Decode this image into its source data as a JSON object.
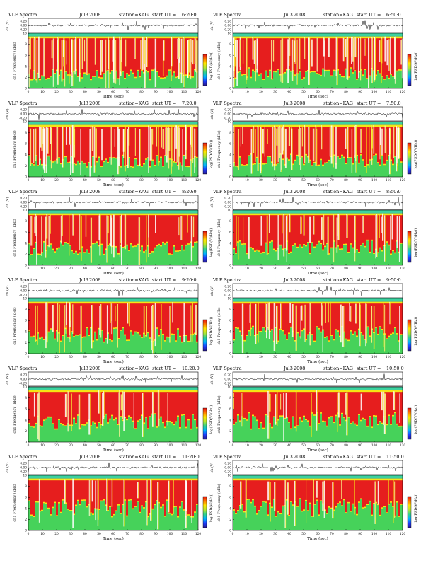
{
  "page": {
    "chart_title": "VLF Spectra",
    "date": "Jul3 2008",
    "station": "station=KAG",
    "start_prefix": "start  UT  ="
  },
  "chart_data": [
    {
      "type": "heatmap",
      "title": "VLF Spectra",
      "date": "Jul3 2008",
      "station": "station=KAG",
      "start_ut": "6:20:0",
      "xlabel": "Time (sec)",
      "ylabel": "ch1 Frequency (kHz)",
      "waveform_label": "ch (V)",
      "waveform_ticks": [
        "0.20",
        "0.00",
        "-0.20"
      ],
      "colorbar_label": "log(PSD(V²/Hz))",
      "xlim": [
        0,
        120
      ],
      "ylim": [
        0,
        10
      ],
      "x_ticks": [
        0,
        10,
        20,
        30,
        40,
        50,
        60,
        70,
        80,
        90,
        100,
        110,
        120
      ],
      "y_ticks": [
        0,
        2,
        4,
        6,
        8,
        10
      ]
    },
    {
      "type": "heatmap",
      "title": "VLF Spectra",
      "date": "Jul3 2008",
      "station": "station=KAG",
      "start_ut": "6:50:0",
      "xlabel": "Time (sec)",
      "ylabel": "ch1 Frequency (kHz)",
      "waveform_label": "ch (V)",
      "waveform_ticks": [
        "0.20",
        "0.00",
        "-0.20"
      ],
      "colorbar_label": "log(PSD(V²/Hz))",
      "xlim": [
        0,
        120
      ],
      "ylim": [
        0,
        10
      ],
      "x_ticks": [
        0,
        10,
        20,
        30,
        40,
        50,
        60,
        70,
        80,
        90,
        100,
        110,
        120
      ],
      "y_ticks": [
        0,
        2,
        4,
        6,
        8,
        10
      ]
    },
    {
      "type": "heatmap",
      "title": "VLF Spectra",
      "date": "Jul3 2008",
      "station": "station=KAG",
      "start_ut": "7:20:0",
      "xlabel": "Time (sec)",
      "ylabel": "ch1 Frequency (kHz)",
      "waveform_label": "ch (V)",
      "waveform_ticks": [
        "0.20",
        "0.00",
        "-0.20"
      ],
      "colorbar_label": "log(PSD(V²/Hz))",
      "xlim": [
        0,
        120
      ],
      "ylim": [
        0,
        10
      ],
      "x_ticks": [
        0,
        10,
        20,
        30,
        40,
        50,
        60,
        70,
        80,
        90,
        100,
        110,
        120
      ],
      "y_ticks": [
        0,
        2,
        4,
        6,
        8,
        10
      ]
    },
    {
      "type": "heatmap",
      "title": "VLF Spectra",
      "date": "Jul3 2008",
      "station": "station=KAG",
      "start_ut": "7:50:0",
      "xlabel": "Time (sec)",
      "ylabel": "ch1 Frequency (kHz)",
      "waveform_label": "ch (V)",
      "waveform_ticks": [
        "0.20",
        "0.00",
        "-0.20"
      ],
      "colorbar_label": "log(PSD(V²/Hz))",
      "xlim": [
        0,
        120
      ],
      "ylim": [
        0,
        10
      ],
      "x_ticks": [
        0,
        10,
        20,
        30,
        40,
        50,
        60,
        70,
        80,
        90,
        100,
        110,
        120
      ],
      "y_ticks": [
        0,
        2,
        4,
        6,
        8,
        10
      ]
    },
    {
      "type": "heatmap",
      "title": "VLF Spectra",
      "date": "Jul3 2008",
      "station": "station=KAG",
      "start_ut": "8:20:0",
      "xlabel": "Time (sec)",
      "ylabel": "ch1 Frequency (kHz)",
      "waveform_label": "ch (V)",
      "waveform_ticks": [
        "0.20",
        "0.00",
        "-0.20"
      ],
      "colorbar_label": "log(PSD(V²/Hz))",
      "xlim": [
        0,
        120
      ],
      "ylim": [
        0,
        10
      ],
      "x_ticks": [
        0,
        10,
        20,
        30,
        40,
        50,
        60,
        70,
        80,
        90,
        100,
        110,
        120
      ],
      "y_ticks": [
        0,
        2,
        4,
        6,
        8,
        10
      ]
    },
    {
      "type": "heatmap",
      "title": "VLF Spectra",
      "date": "Jul3 2008",
      "station": "station=KAG",
      "start_ut": "8:50:0",
      "xlabel": "Time (sec)",
      "ylabel": "ch1 Frequency (kHz)",
      "waveform_label": "ch (V)",
      "waveform_ticks": [
        "0.20",
        "0.00",
        "-0.20"
      ],
      "colorbar_label": "log(PSD(V²/Hz))",
      "xlim": [
        0,
        120
      ],
      "ylim": [
        0,
        10
      ],
      "x_ticks": [
        0,
        10,
        20,
        30,
        40,
        50,
        60,
        70,
        80,
        90,
        100,
        110,
        120
      ],
      "y_ticks": [
        0,
        2,
        4,
        6,
        8,
        10
      ]
    },
    {
      "type": "heatmap",
      "title": "VLF Spectra",
      "date": "Jul3 2008",
      "station": "station=KAG",
      "start_ut": "9:20:0",
      "xlabel": "Time (sec)",
      "ylabel": "ch1 Frequency (kHz)",
      "waveform_label": "ch (V)",
      "waveform_ticks": [
        "0.20",
        "0.00",
        "-0.20"
      ],
      "colorbar_label": "log(PSD(V²/Hz))",
      "xlim": [
        0,
        120
      ],
      "ylim": [
        0,
        10
      ],
      "x_ticks": [
        0,
        10,
        20,
        30,
        40,
        50,
        60,
        70,
        80,
        90,
        100,
        110,
        120
      ],
      "y_ticks": [
        0,
        2,
        4,
        6,
        8,
        10
      ]
    },
    {
      "type": "heatmap",
      "title": "VLF Spectra",
      "date": "Jul3 2008",
      "station": "station=KAG",
      "start_ut": "9:50:0",
      "xlabel": "Time (sec)",
      "ylabel": "ch1 Frequency (kHz)",
      "waveform_label": "ch (V)",
      "waveform_ticks": [
        "0.20",
        "0.00",
        "-0.20"
      ],
      "colorbar_label": "log(PSD(V²/Hz))",
      "xlim": [
        0,
        120
      ],
      "ylim": [
        0,
        10
      ],
      "x_ticks": [
        0,
        10,
        20,
        30,
        40,
        50,
        60,
        70,
        80,
        90,
        100,
        110,
        120
      ],
      "y_ticks": [
        0,
        2,
        4,
        6,
        8,
        10
      ]
    },
    {
      "type": "heatmap",
      "title": "VLF Spectra",
      "date": "Jul3 2008",
      "station": "station=KAG",
      "start_ut": "10:20:0",
      "xlabel": "Time (sec)",
      "ylabel": "ch1 Frequency (kHz)",
      "waveform_label": "ch (V)",
      "waveform_ticks": [
        "0.20",
        "0.00",
        "-0.20"
      ],
      "colorbar_label": "log(PSD(V²/Hz))",
      "xlim": [
        0,
        120
      ],
      "ylim": [
        0,
        10
      ],
      "x_ticks": [
        0,
        10,
        20,
        30,
        40,
        50,
        60,
        70,
        80,
        90,
        100,
        110,
        120
      ],
      "y_ticks": [
        0,
        2,
        4,
        6,
        8,
        10
      ]
    },
    {
      "type": "heatmap",
      "title": "VLF Spectra",
      "date": "Jul3 2008",
      "station": "station=KAG",
      "start_ut": "10:50:0",
      "xlabel": "Time (sec)",
      "ylabel": "ch1 Frequency (kHz)",
      "waveform_label": "ch (V)",
      "waveform_ticks": [
        "0.20",
        "0.00",
        "-0.20"
      ],
      "colorbar_label": "log(PSD(V²/Hz))",
      "xlim": [
        0,
        120
      ],
      "ylim": [
        0,
        10
      ],
      "x_ticks": [
        0,
        10,
        20,
        30,
        40,
        50,
        60,
        70,
        80,
        90,
        100,
        110,
        120
      ],
      "y_ticks": [
        0,
        2,
        4,
        6,
        8,
        10
      ]
    },
    {
      "type": "heatmap",
      "title": "VLF Spectra",
      "date": "Jul3 2008",
      "station": "station=KAG",
      "start_ut": "11:20:0",
      "xlabel": "Time (sec)",
      "ylabel": "ch1 Frequency (kHz)",
      "waveform_label": "ch (V)",
      "waveform_ticks": [
        "0.20",
        "0.00",
        "-0.20"
      ],
      "colorbar_label": "log(PSD(V²/Hz))",
      "xlim": [
        0,
        120
      ],
      "ylim": [
        0,
        10
      ],
      "x_ticks": [
        0,
        10,
        20,
        30,
        40,
        50,
        60,
        70,
        80,
        90,
        100,
        110,
        120
      ],
      "y_ticks": [
        0,
        2,
        4,
        6,
        8,
        10
      ]
    },
    {
      "type": "heatmap",
      "title": "VLF Spectra",
      "date": "Jul3 2008",
      "station": "station=KAG",
      "start_ut": "11:50:0",
      "xlabel": "Time (sec)",
      "ylabel": "ch1 Frequency (kHz)",
      "waveform_label": "ch (V)",
      "waveform_ticks": [
        "0.20",
        "0.00",
        "-0.20"
      ],
      "colorbar_label": "log(PSD(V²/Hz))",
      "xlim": [
        0,
        120
      ],
      "ylim": [
        0,
        10
      ],
      "x_ticks": [
        0,
        10,
        20,
        30,
        40,
        50,
        60,
        70,
        80,
        90,
        100,
        110,
        120
      ],
      "y_ticks": [
        0,
        2,
        4,
        6,
        8,
        10
      ]
    }
  ],
  "colors": {
    "spectro_red": "#e61e1e",
    "spectro_yellow": "#f5e614",
    "spectro_green": "#46d25a",
    "spectro_cyan": "#3cd2a0",
    "spectro_white": "#ffffff",
    "colorbar_stops": [
      "#2a1a8c",
      "#1e3cff",
      "#00b4ff",
      "#32d28c",
      "#b4e632",
      "#ffe600",
      "#ff7800",
      "#e61414"
    ]
  }
}
